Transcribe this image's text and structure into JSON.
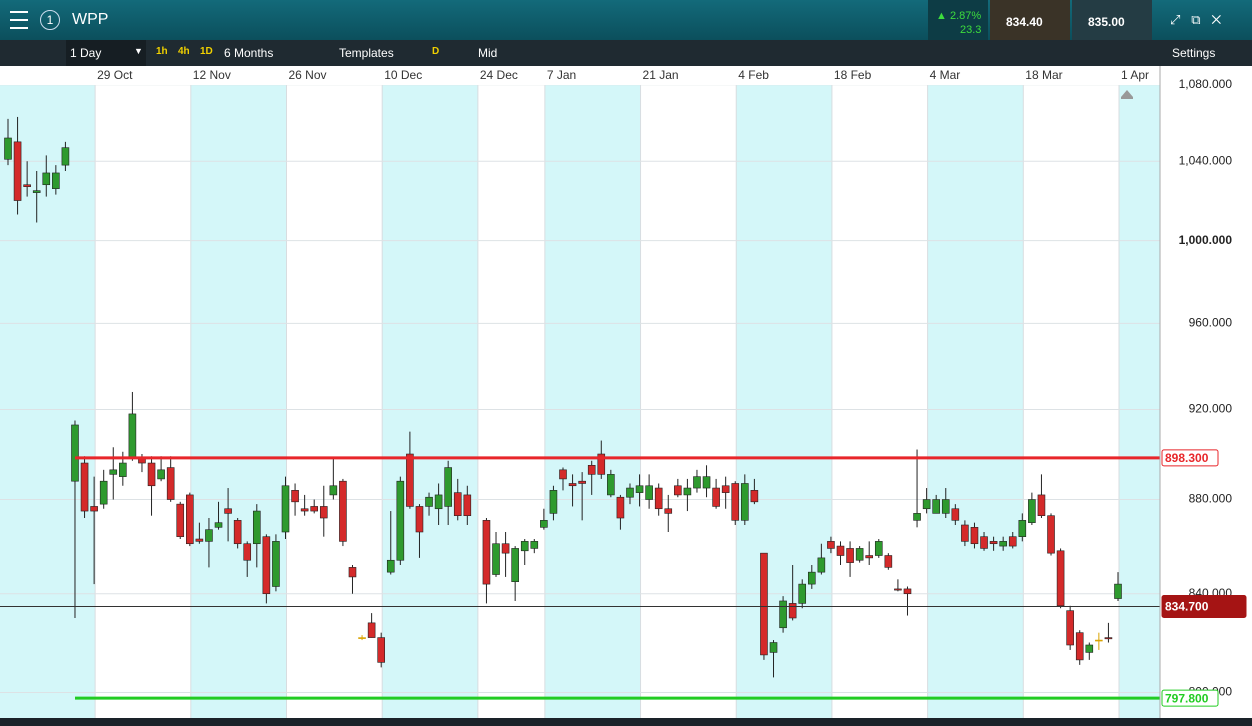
{
  "header": {
    "symbol": "WPP",
    "badge": "1",
    "change_pct": "2.87%",
    "change_abs": "23.3",
    "sell_price": "834.40",
    "buy_price": "835.00"
  },
  "toolbar": {
    "interval": "1 Day",
    "quick": [
      "1h",
      "4h",
      "1D"
    ],
    "range": "6 Months",
    "templates": "Templates",
    "d": "D",
    "price_type": "Mid",
    "settings": "Settings"
  },
  "chart_data": {
    "type": "candlestick",
    "log_scale": true,
    "categories": [
      null,
      null,
      null,
      null,
      null,
      null,
      null,
      null,
      null,
      "29 Oct",
      null,
      null,
      null,
      null,
      null,
      null,
      null,
      null,
      null,
      "12 Nov",
      null,
      null,
      null,
      null,
      null,
      null,
      null,
      null,
      null,
      "26 Nov",
      null,
      null,
      null,
      null,
      null,
      null,
      null,
      null,
      null,
      "10 Dec",
      null,
      null,
      null,
      null,
      null,
      null,
      null,
      null,
      null,
      "24 Dec",
      null,
      null,
      null,
      null,
      null,
      null,
      "7 Jan",
      null,
      null,
      null,
      null,
      null,
      null,
      null,
      null,
      null,
      "21 Jan",
      null,
      null,
      null,
      null,
      null,
      null,
      null,
      null,
      null,
      "4 Feb",
      null,
      null,
      null,
      null,
      null,
      null,
      null,
      null,
      null,
      "18 Feb",
      null,
      null,
      null,
      null,
      null,
      null,
      null,
      null,
      null,
      "4 Mar",
      null,
      null,
      null,
      null,
      null,
      null,
      null,
      null,
      null,
      "18 Mar",
      null,
      null,
      null,
      null,
      null,
      null,
      null,
      null,
      null,
      "1 Apr"
    ],
    "open": [
      1041,
      1050,
      1028,
      1024,
      1028,
      1026,
      1038,
      888,
      896,
      877,
      878,
      891,
      890,
      898,
      898,
      896,
      889,
      894,
      878,
      882,
      863,
      862,
      868,
      876,
      871,
      861,
      861,
      864,
      843,
      866,
      884,
      876,
      877,
      877,
      882,
      888,
      851,
      822,
      828,
      822,
      849,
      854,
      900,
      877,
      877,
      876,
      877,
      883,
      882,
      null,
      871,
      848,
      861,
      845,
      858,
      859,
      868,
      874,
      893,
      887,
      888,
      895,
      900,
      882,
      881,
      881,
      883,
      880,
      885,
      876,
      886,
      882,
      885,
      885,
      885,
      886,
      887,
      871,
      884,
      857,
      816,
      826,
      836,
      836,
      844,
      849,
      862,
      860,
      859,
      854,
      856,
      856,
      856,
      842,
      842,
      871,
      876,
      874,
      874,
      876,
      869,
      868,
      864,
      862,
      860,
      864,
      864,
      870,
      882,
      873,
      858,
      833,
      824,
      816,
      821,
      822,
      838
    ],
    "high": [
      1062,
      1063,
      1040,
      1035,
      1043,
      1038,
      1050,
      915,
      899,
      890,
      893,
      903,
      901,
      928,
      900,
      899,
      899,
      899,
      879,
      883,
      870,
      872,
      879,
      885,
      872,
      862,
      878,
      865,
      865,
      890,
      887,
      882,
      880,
      886,
      898,
      889,
      852,
      823,
      832,
      824,
      875,
      890,
      910,
      878,
      883,
      887,
      897,
      889,
      886,
      null,
      872,
      866,
      866,
      860,
      863,
      863,
      876,
      886,
      894,
      891,
      892,
      897,
      906,
      893,
      882,
      887,
      891,
      891,
      887,
      882,
      889,
      889,
      893,
      895,
      889,
      890,
      888,
      891,
      889,
      857,
      821,
      839,
      852,
      846,
      852,
      861,
      864,
      862,
      862,
      860,
      862,
      863,
      857,
      846,
      843,
      902,
      885,
      882,
      885,
      878,
      871,
      870,
      866,
      864,
      864,
      866,
      874,
      883,
      891,
      874,
      859,
      835,
      825,
      820,
      824,
      828,
      849
    ],
    "low": [
      1038,
      1013,
      1022,
      1009,
      1022,
      1023,
      1035,
      830,
      872,
      844,
      876,
      880,
      886,
      897,
      892,
      873,
      888,
      879,
      863,
      860,
      861,
      851,
      867,
      862,
      859,
      847,
      851,
      836,
      841,
      863,
      873,
      873,
      874,
      864,
      880,
      860,
      840,
      821,
      822,
      810,
      848,
      852,
      876,
      855,
      873,
      869,
      869,
      871,
      869,
      null,
      836,
      847,
      847,
      837,
      852,
      857,
      867,
      871,
      884,
      877,
      871,
      882,
      889,
      881,
      867,
      878,
      877,
      876,
      873,
      866,
      881,
      875,
      883,
      881,
      876,
      876,
      869,
      869,
      878,
      813,
      806,
      824,
      829,
      834,
      842,
      848,
      857,
      852,
      847,
      853,
      852,
      855,
      850,
      841,
      831,
      868,
      874,
      874,
      872,
      869,
      860,
      859,
      858,
      858,
      858,
      859,
      862,
      869,
      872,
      856,
      834,
      817,
      811,
      813,
      817,
      820,
      837
    ],
    "close": [
      1052,
      1020,
      1027,
      1025,
      1034,
      1034,
      1047,
      913,
      875,
      875,
      888,
      893,
      896,
      918,
      896,
      886,
      893,
      880,
      864,
      861,
      862,
      867,
      870,
      874,
      861,
      854,
      875,
      840,
      862,
      886,
      879,
      875,
      875,
      872,
      886,
      862,
      847,
      822,
      822,
      812,
      854,
      888,
      877,
      866,
      881,
      882,
      894,
      873,
      873,
      null,
      844,
      861,
      857,
      859,
      862,
      862,
      871,
      884,
      889,
      886,
      887,
      891,
      891,
      891,
      872,
      885,
      886,
      886,
      876,
      874,
      882,
      885,
      890,
      890,
      877,
      883,
      871,
      887,
      879,
      815,
      820,
      837,
      830,
      844,
      849,
      855,
      859,
      856,
      853,
      859,
      855,
      862,
      851,
      841.5,
      840,
      874,
      880,
      880,
      880,
      871,
      862,
      861,
      859,
      861,
      862,
      860,
      871,
      880,
      873,
      857,
      835,
      819,
      813,
      819,
      821,
      821.5,
      844
    ],
    "ylim": [
      790,
      1089
    ],
    "yticks": [
      {
        "value": 800,
        "label": "800.000"
      },
      {
        "value": 840,
        "label": "840.000"
      },
      {
        "value": 880,
        "label": "880.000"
      },
      {
        "value": 920,
        "label": "920.000"
      },
      {
        "value": 960,
        "label": "960.000"
      },
      {
        "value": 1000,
        "label": "1,000.000"
      },
      {
        "value": 1040,
        "label": "1,040.000"
      },
      {
        "value": 1080,
        "label": "1,080.000"
      }
    ],
    "grid": true,
    "up_color": "#2e9a2e",
    "down_color": "#d42a2a",
    "doji_color": "#d9a300",
    "levels": [
      {
        "value": 898.3,
        "label": "898.300",
        "color": "#e8262a"
      },
      {
        "value": 797.8,
        "label": "797.800",
        "color": "#22cc22"
      },
      {
        "value": 834.7,
        "label": "834.700",
        "color": "#333333"
      }
    ]
  }
}
